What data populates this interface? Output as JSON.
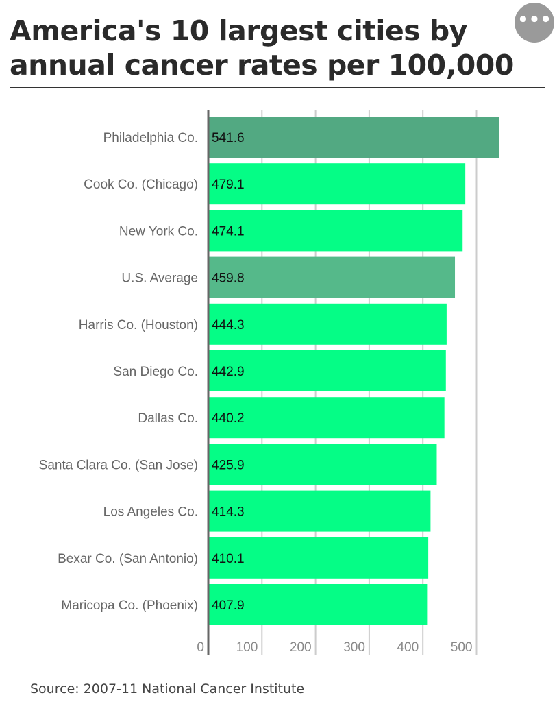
{
  "header": {
    "title": "America's 10 largest cities by annual cancer rates per 100,000",
    "more_button": "•••"
  },
  "colors": {
    "highlight": "#52a982",
    "average": "#55b98a",
    "default": "#05fd86",
    "grid": "#cccccc"
  },
  "chart_data": {
    "type": "bar",
    "orientation": "horizontal",
    "title": "America's 10 largest cities by annual cancer rates per 100,000",
    "categories": [
      "Philadelphia Co.",
      "Cook Co. (Chicago)",
      "New York Co.",
      "U.S. Average",
      "Harris Co. (Houston)",
      "San Diego Co.",
      "Dallas Co.",
      "Santa Clara Co. (San Jose)",
      "Los Angeles Co.",
      "Bexar Co. (San Antonio)",
      "Maricopa Co. (Phoenix)"
    ],
    "values": [
      541.6,
      479.1,
      474.1,
      459.8,
      444.3,
      442.9,
      440.2,
      425.9,
      414.3,
      410.1,
      407.9
    ],
    "value_labels": [
      "541.6",
      "479.1",
      "474.1",
      "459.8",
      "444.3",
      "442.9",
      "440.2",
      "425.9",
      "414.3",
      "410.1",
      "407.9"
    ],
    "bar_styles": [
      "highlight",
      "default",
      "default",
      "average",
      "default",
      "default",
      "default",
      "default",
      "default",
      "default",
      "default"
    ],
    "xticks": [
      0,
      100,
      200,
      300,
      400,
      500
    ],
    "xtick_labels": [
      "0",
      "100",
      "200",
      "300",
      "400",
      "500"
    ],
    "xlim": [
      0,
      550
    ],
    "grid": true,
    "xlabel": "",
    "ylabel": ""
  },
  "footer": {
    "source": "Source: 2007-11 National Cancer Institute"
  }
}
